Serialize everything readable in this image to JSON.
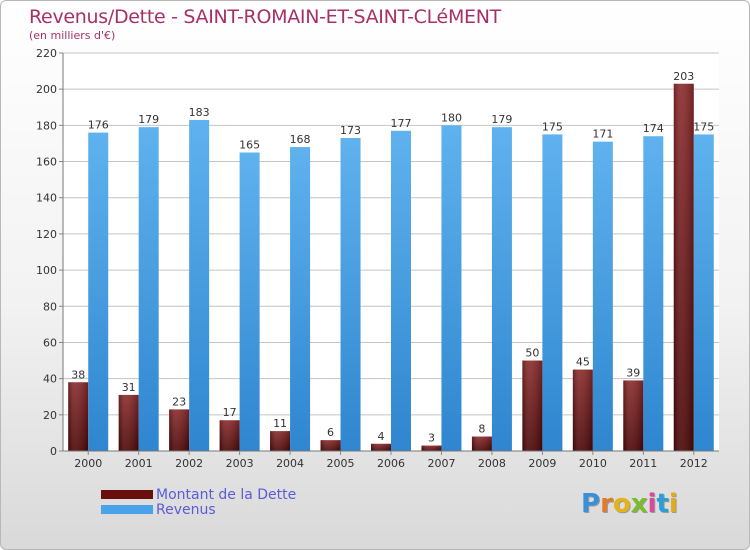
{
  "title": "Revenus/Dette - SAINT-ROMAIN-ET-SAINT-CLéMENT",
  "subtitle": "(en milliers d'€)",
  "logo": {
    "text": "Proxiti",
    "colors": [
      "#3a8fd6",
      "#e07b2a",
      "#e6b21a",
      "#7dbb2c",
      "#d94a9a",
      "#2a9fd6",
      "#e0ac1a"
    ]
  },
  "colors": {
    "dette": "#7a1a1a",
    "revenus": "#4aa3e8",
    "title": "#a8306a",
    "legend_text": "#5b5bd8"
  },
  "legend": [
    {
      "label": "Montant de la Dette",
      "color": "#6a0e0e"
    },
    {
      "label": "Revenus",
      "color": "#4aa3e8"
    }
  ],
  "chart_data": {
    "type": "bar",
    "categories": [
      "2000",
      "2001",
      "2002",
      "2003",
      "2004",
      "2005",
      "2006",
      "2007",
      "2008",
      "2009",
      "2010",
      "2011",
      "2012"
    ],
    "series": [
      {
        "name": "Montant de la Dette",
        "values": [
          38,
          31,
          23,
          17,
          11,
          6,
          4,
          3,
          8,
          50,
          45,
          39,
          203
        ]
      },
      {
        "name": "Revenus",
        "values": [
          176,
          179,
          183,
          165,
          168,
          173,
          177,
          180,
          179,
          175,
          171,
          174,
          175
        ]
      }
    ],
    "ylim": [
      0,
      220
    ],
    "yticks": [
      0,
      20,
      40,
      60,
      80,
      100,
      120,
      140,
      160,
      180,
      200,
      220
    ],
    "grid": true,
    "legend_position": "bottom-left"
  }
}
